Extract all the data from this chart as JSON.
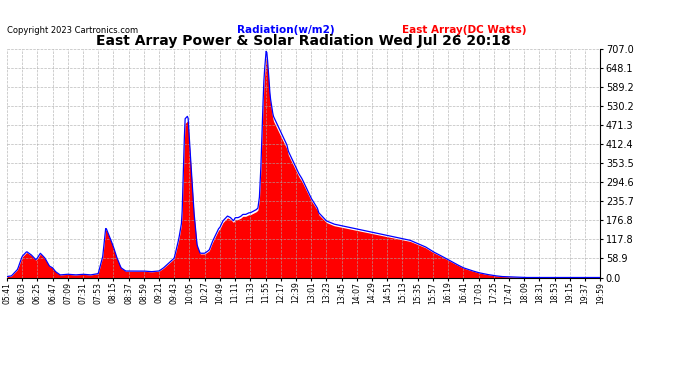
{
  "title": "East Array Power & Solar Radiation Wed Jul 26 20:18",
  "copyright": "Copyright 2023 Cartronics.com",
  "legend_radiation": "Radiation(w/m2)",
  "legend_array": "East Array(DC Watts)",
  "radiation_color": "blue",
  "array_color": "red",
  "ymin": 0.0,
  "ymax": 707.0,
  "yticks": [
    0.0,
    58.9,
    117.8,
    176.8,
    235.7,
    294.6,
    353.5,
    412.4,
    471.3,
    530.2,
    589.2,
    648.1,
    707.0
  ],
  "background_color": "#ffffff",
  "grid_color": "#aaaaaa",
  "x_labels": [
    "05:41",
    "06:03",
    "06:25",
    "06:47",
    "07:09",
    "07:31",
    "07:53",
    "08:15",
    "08:37",
    "08:59",
    "09:21",
    "09:43",
    "10:05",
    "10:27",
    "10:49",
    "11:11",
    "11:33",
    "11:55",
    "12:17",
    "12:39",
    "13:01",
    "13:23",
    "13:45",
    "14:07",
    "14:29",
    "14:51",
    "15:13",
    "15:35",
    "15:57",
    "16:19",
    "16:41",
    "17:03",
    "17:25",
    "17:47",
    "18:09",
    "18:31",
    "18:53",
    "19:15",
    "19:37",
    "19:59"
  ],
  "radiation_data": [
    5,
    20,
    60,
    80,
    70,
    30,
    10,
    5,
    65,
    155,
    95,
    20,
    20,
    20,
    175,
    500,
    350,
    75,
    75,
    150,
    190,
    165,
    195,
    185,
    195,
    185,
    200,
    215,
    680,
    450,
    390,
    340,
    295,
    245,
    180,
    120,
    75,
    30,
    10,
    3
  ],
  "array_data": [
    3,
    18,
    55,
    75,
    65,
    28,
    8,
    3,
    60,
    150,
    90,
    18,
    15,
    18,
    170,
    490,
    340,
    70,
    70,
    145,
    185,
    160,
    190,
    180,
    190,
    180,
    195,
    210,
    670,
    440,
    380,
    330,
    285,
    235,
    170,
    110,
    68,
    25,
    8,
    2
  ]
}
